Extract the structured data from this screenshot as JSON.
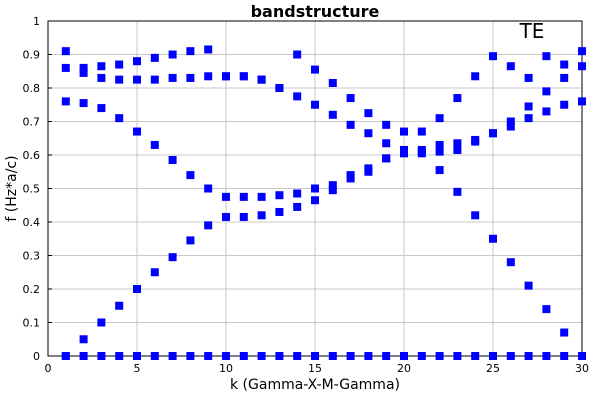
{
  "chart_data": {
    "type": "scatter",
    "title": "bandstructure",
    "annotation": "TE",
    "xlabel": "k (Gamma-X-M-Gamma)",
    "ylabel": "f (Hz*a/c)",
    "xlim": [
      0,
      30
    ],
    "ylim": [
      0,
      1
    ],
    "xticks": [
      "0",
      "5",
      "10",
      "15",
      "20",
      "25",
      "30"
    ],
    "yticks": [
      "0",
      "0.1",
      "0.2",
      "0.3",
      "0.4",
      "0.5",
      "0.6",
      "0.7",
      "0.8",
      "0.9",
      "1"
    ],
    "grid": true,
    "marker_color": "#0000ff",
    "x": [
      1,
      2,
      3,
      4,
      5,
      6,
      7,
      8,
      9,
      10,
      11,
      12,
      13,
      14,
      15,
      16,
      17,
      18,
      19,
      20,
      21,
      22,
      23,
      24,
      25,
      26,
      27,
      28,
      29,
      30
    ],
    "series": [
      {
        "values": [
          0,
          0,
          0,
          0,
          0,
          0,
          0,
          0,
          0,
          0,
          0,
          0,
          0,
          0,
          0,
          0,
          0,
          0,
          0,
          0,
          0,
          0,
          0,
          0,
          0,
          0,
          0,
          0,
          0,
          0
        ]
      },
      {
        "values": [
          0,
          0.05,
          0.1,
          0.15,
          0.2,
          0.25,
          0.295,
          0.345,
          0.39,
          0.415,
          0.415,
          0.42,
          0.43,
          0.445,
          0.465,
          0.495,
          0.53,
          0.56,
          0.59,
          0.605,
          0.605,
          0.61,
          0.615,
          0.64,
          0.665,
          0.685,
          0.71,
          0.73,
          0.75,
          0.76
        ]
      },
      {
        "values": [
          0.76,
          0.755,
          0.74,
          0.71,
          0.67,
          0.63,
          0.585,
          0.54,
          0.5,
          0.475,
          0.475,
          0.475,
          0.48,
          0.485,
          0.5,
          0.51,
          0.54,
          0.55,
          0.59,
          0.61,
          0.615,
          0.63,
          0.635,
          0.645,
          0.665,
          0.7,
          0.745,
          0.79,
          0.83,
          0.865
        ]
      },
      {
        "values": [
          0.86,
          0.86,
          0.865,
          0.87,
          0.88,
          0.89,
          0.9,
          0.91,
          0.915,
          0.835,
          0.835,
          0.825,
          0.8,
          0.775,
          0.75,
          0.72,
          0.69,
          0.665,
          0.635,
          0.615,
          0.61,
          0.555,
          0.49,
          0.42,
          0.35,
          0.28,
          0.21,
          0.14,
          0.07,
          0
        ]
      },
      {
        "values": [
          0.91,
          0.845,
          0.83,
          0.825,
          0.825,
          0.825,
          0.83,
          0.83,
          0.835,
          0.835,
          0.835,
          0.825,
          0.8,
          0.9,
          0.855,
          0.815,
          0.77,
          0.725,
          0.69,
          0.67,
          0.67,
          0.71,
          0.77,
          0.835,
          0.895,
          0.865,
          0.83,
          0.895,
          0.87,
          0.91
        ]
      }
    ]
  }
}
